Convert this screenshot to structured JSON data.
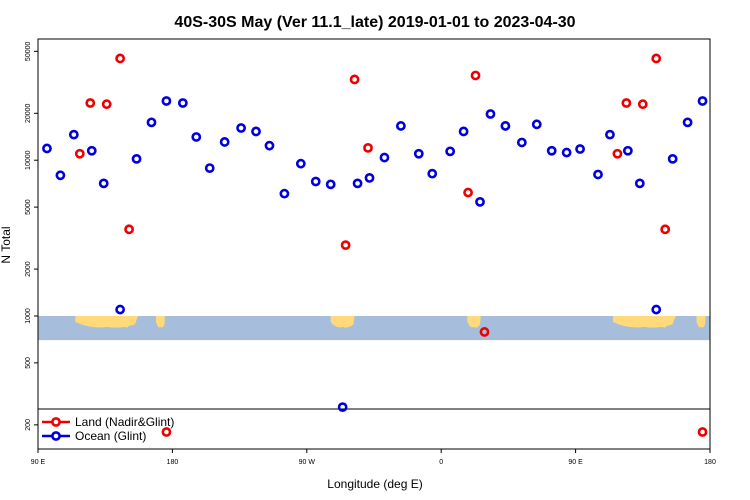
{
  "chart_data": {
    "type": "scatter",
    "title": "40S-30S May (Ver 11.1_late)   2019-01-01 to 2023-04-30",
    "xlabel": "Longitude (deg E)",
    "ylabel": "N Total",
    "x_scale": "longitude-unwrapped",
    "y_scale": "log",
    "xlim": [
      90,
      540
    ],
    "ylim": [
      140,
      60000
    ],
    "x_ticks": [
      {
        "value": 90,
        "label": "90 E"
      },
      {
        "value": 180,
        "label": "180"
      },
      {
        "value": 270,
        "label": "90 W"
      },
      {
        "value": 360,
        "label": "0"
      },
      {
        "value": 450,
        "label": "90 E"
      },
      {
        "value": 540,
        "label": "180"
      }
    ],
    "y_ticks": [
      {
        "value": 200,
        "label": "200"
      },
      {
        "value": 500,
        "label": "500"
      },
      {
        "value": 1000,
        "label": "1000"
      },
      {
        "value": 2000,
        "label": "2000"
      },
      {
        "value": 5000,
        "label": "5000"
      },
      {
        "value": 10000,
        "label": "10000"
      },
      {
        "value": 20000,
        "label": "20000"
      },
      {
        "value": 50000,
        "label": "50000"
      }
    ],
    "colors": {
      "land": "#ee0000",
      "ocean": "#0000dd",
      "map_water": "#a6bddb",
      "map_land": "#ffd97a"
    },
    "map_strip": {
      "y_top": 1000,
      "y_bottom": 700,
      "lat_range": "40S-30S"
    },
    "legend": {
      "placement": "bottom-left",
      "entries": [
        {
          "label": "Land (Nadir&Glint)",
          "series": "land"
        },
        {
          "label": "Ocean (Glint)",
          "series": "ocean"
        }
      ]
    },
    "series": [
      {
        "name": "Land (Nadir&Glint)",
        "key": "land",
        "points": [
          {
            "x": 118,
            "y": 11000
          },
          {
            "x": 125,
            "y": 23300
          },
          {
            "x": 136,
            "y": 22900
          },
          {
            "x": 145,
            "y": 45000
          },
          {
            "x": 151,
            "y": 3600
          },
          {
            "x": 176,
            "y": 180
          },
          {
            "x": 296,
            "y": 2850
          },
          {
            "x": 302,
            "y": 33000
          },
          {
            "x": 311,
            "y": 12000
          },
          {
            "x": 378,
            "y": 6200
          },
          {
            "x": 383,
            "y": 35000
          },
          {
            "x": 389,
            "y": 790
          },
          {
            "x": 478,
            "y": 11000
          },
          {
            "x": 484,
            "y": 23300
          },
          {
            "x": 495,
            "y": 22900
          },
          {
            "x": 504,
            "y": 45000
          },
          {
            "x": 510,
            "y": 3600
          },
          {
            "x": 535,
            "y": 180
          }
        ]
      },
      {
        "name": "Ocean (Glint)",
        "key": "ocean",
        "points": [
          {
            "x": 96,
            "y": 11900
          },
          {
            "x": 105,
            "y": 8000
          },
          {
            "x": 114,
            "y": 14600
          },
          {
            "x": 126,
            "y": 11500
          },
          {
            "x": 134,
            "y": 7100
          },
          {
            "x": 145,
            "y": 1100
          },
          {
            "x": 156,
            "y": 10200
          },
          {
            "x": 166,
            "y": 17500
          },
          {
            "x": 176,
            "y": 24000
          },
          {
            "x": 187,
            "y": 23300
          },
          {
            "x": 196,
            "y": 14100
          },
          {
            "x": 205,
            "y": 8900
          },
          {
            "x": 215,
            "y": 13100
          },
          {
            "x": 226,
            "y": 16100
          },
          {
            "x": 236,
            "y": 15300
          },
          {
            "x": 245,
            "y": 12400
          },
          {
            "x": 255,
            "y": 6100
          },
          {
            "x": 266,
            "y": 9500
          },
          {
            "x": 276,
            "y": 7300
          },
          {
            "x": 286,
            "y": 7000
          },
          {
            "x": 294,
            "y": 260
          },
          {
            "x": 304,
            "y": 7100
          },
          {
            "x": 312,
            "y": 7700
          },
          {
            "x": 322,
            "y": 10400
          },
          {
            "x": 333,
            "y": 16600
          },
          {
            "x": 345,
            "y": 11000
          },
          {
            "x": 354,
            "y": 8200
          },
          {
            "x": 366,
            "y": 11400
          },
          {
            "x": 375,
            "y": 15300
          },
          {
            "x": 386,
            "y": 5400
          },
          {
            "x": 393,
            "y": 19800
          },
          {
            "x": 403,
            "y": 16600
          },
          {
            "x": 414,
            "y": 13000
          },
          {
            "x": 424,
            "y": 17000
          },
          {
            "x": 434,
            "y": 11500
          },
          {
            "x": 444,
            "y": 11200
          },
          {
            "x": 453,
            "y": 11800
          },
          {
            "x": 465,
            "y": 8100
          },
          {
            "x": 473,
            "y": 14600
          },
          {
            "x": 485,
            "y": 11500
          },
          {
            "x": 493,
            "y": 7100
          },
          {
            "x": 504,
            "y": 1100
          },
          {
            "x": 515,
            "y": 10200
          },
          {
            "x": 525,
            "y": 17500
          },
          {
            "x": 535,
            "y": 24000
          }
        ]
      }
    ]
  }
}
